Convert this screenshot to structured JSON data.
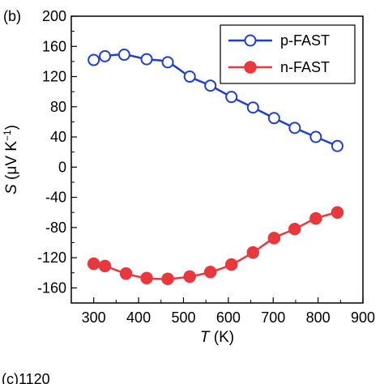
{
  "panel_label": "(b)",
  "next_panel_label": "(c)1120",
  "chart_data": {
    "type": "line",
    "xlabel": "T",
    "xlabel_unit": " (K)",
    "ylabel": "S",
    "ylabel_unit": " (μV K",
    "ylabel_unit_sup": "−1",
    "ylabel_unit_close": ")",
    "xlim": [
      250,
      900
    ],
    "ylim": [
      -180,
      200
    ],
    "xticks": [
      300,
      400,
      500,
      600,
      700,
      800,
      900
    ],
    "yticks": [
      200,
      160,
      120,
      80,
      40,
      0,
      -40,
      -80,
      -120,
      -160
    ],
    "grid": false,
    "legend_position": "top-right",
    "series": [
      {
        "name": "p-FAST",
        "color": "#1f3fd0",
        "marker": "open-circle",
        "x": [
          300,
          325,
          368,
          418,
          465,
          514,
          560,
          607,
          655,
          702,
          748,
          795,
          843
        ],
        "y": [
          142,
          147,
          149,
          143,
          139,
          120,
          108,
          93,
          79,
          65,
          52,
          40,
          28
        ]
      },
      {
        "name": "n-FAST",
        "color": "#e8383d",
        "marker": "filled-circle",
        "x": [
          300,
          325,
          372,
          418,
          465,
          514,
          560,
          607,
          655,
          702,
          748,
          795,
          843
        ],
        "y": [
          -128,
          -131,
          -141,
          -147,
          -148,
          -145,
          -139,
          -129,
          -113,
          -94,
          -82,
          -68,
          -60
        ]
      }
    ]
  }
}
